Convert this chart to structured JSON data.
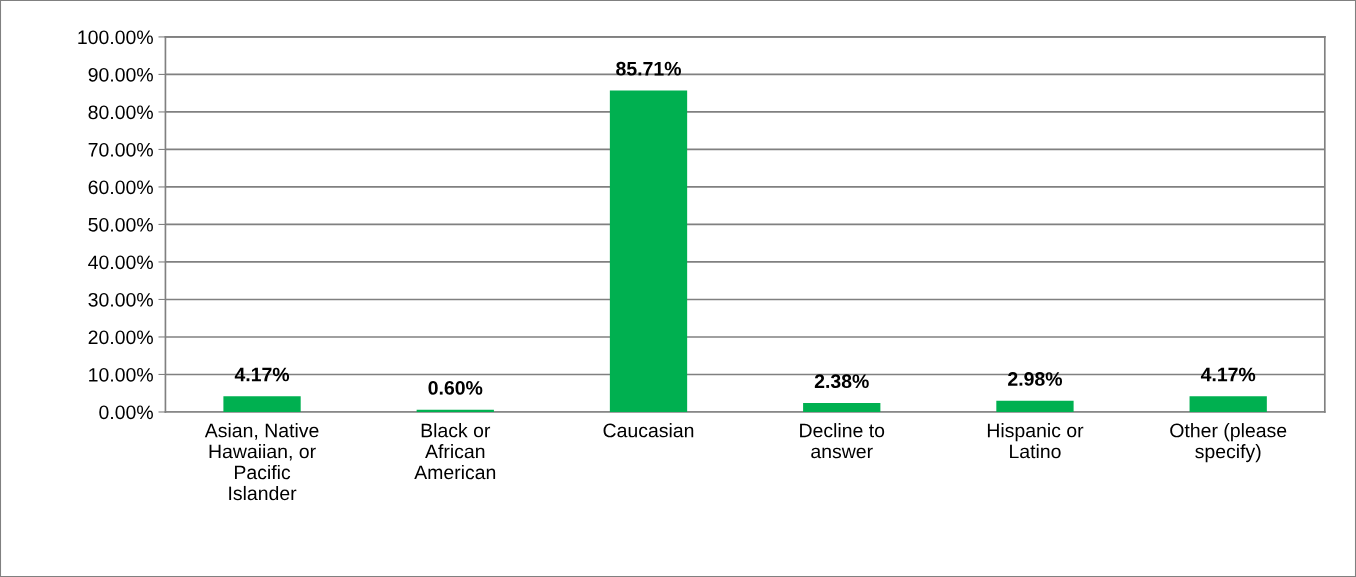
{
  "chart_data": {
    "type": "bar",
    "categories": [
      "Asian, Native Hawaiian, or Pacific Islander",
      "Black or African American",
      "Caucasian",
      "Decline to answer",
      "Hispanic or Latino",
      "Other (please specify)"
    ],
    "values": [
      4.17,
      0.6,
      85.71,
      2.38,
      2.98,
      4.17
    ],
    "value_labels": [
      "4.17%",
      "0.60%",
      "85.71%",
      "2.38%",
      "2.98%",
      "4.17%"
    ],
    "color": "#00b050",
    "ylim": [
      0,
      100
    ],
    "yticks": [
      {
        "value": 0,
        "label": "0.00%"
      },
      {
        "value": 10,
        "label": "10.00%"
      },
      {
        "value": 20,
        "label": "20.00%"
      },
      {
        "value": 30,
        "label": "30.00%"
      },
      {
        "value": 40,
        "label": "40.00%"
      },
      {
        "value": 50,
        "label": "50.00%"
      },
      {
        "value": 60,
        "label": "60.00%"
      },
      {
        "value": 70,
        "label": "70.00%"
      },
      {
        "value": 80,
        "label": "80.00%"
      },
      {
        "value": 90,
        "label": "90.00%"
      },
      {
        "value": 100,
        "label": "100.00%"
      }
    ],
    "grid": "y"
  }
}
